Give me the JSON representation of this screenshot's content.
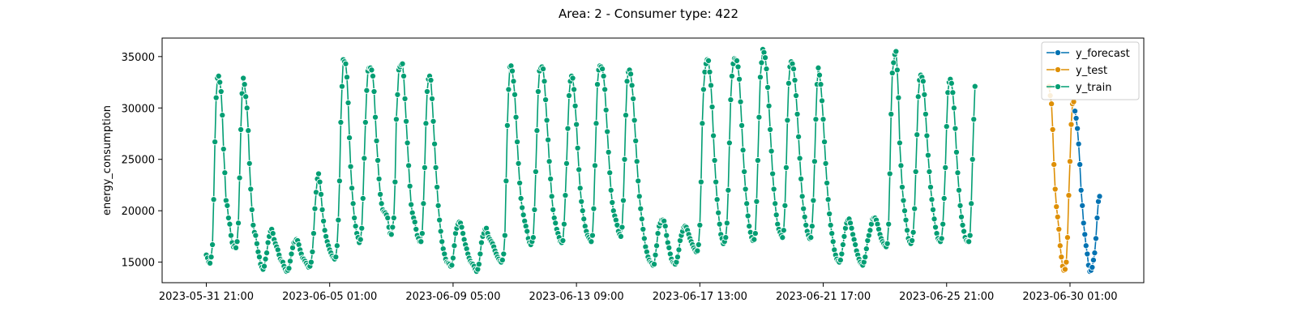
{
  "chart_data": {
    "type": "line",
    "title": "Area: 2 - Consumer type: 422",
    "xlabel": "",
    "ylabel": "energy_consumption",
    "x_unit": "hourly timestamps",
    "x_start": "2023-05-31 21:00",
    "x_ticks": [
      "2023-05-31 21:00",
      "2023-06-05 01:00",
      "2023-06-09 05:00",
      "2023-06-13 09:00",
      "2023-06-17 13:00",
      "2023-06-21 17:00",
      "2023-06-25 21:00",
      "2023-06-30 01:00"
    ],
    "y_ticks": [
      15000,
      20000,
      25000,
      30000,
      35000
    ],
    "ylim": [
      13000,
      36800
    ],
    "grid": false,
    "legend_position": "top-right",
    "markers": "circle",
    "colors": {
      "y_forecast": "#0072b2",
      "y_test": "#de8f05",
      "y_train": "#029e73"
    },
    "series": [
      {
        "name": "y_train",
        "color": "#029e73",
        "x_start": "2023-05-31 21:00",
        "step_hours": 1,
        "values": [
          15700,
          15400,
          15000,
          14900,
          15500,
          16700,
          21100,
          26700,
          31000,
          32900,
          33100,
          32500,
          31600,
          29300,
          26000,
          23700,
          21000,
          20500,
          19300,
          18700,
          17600,
          16900,
          16500,
          16600,
          16400,
          17000,
          18800,
          23200,
          27900,
          31400,
          32900,
          32300,
          31100,
          30000,
          27800,
          24600,
          22100,
          20100,
          18600,
          17900,
          17600,
          16800,
          16000,
          15500,
          14800,
          14500,
          14300,
          14600,
          15300,
          15900,
          16900,
          17500,
          18000,
          18200,
          17800,
          17200,
          16800,
          16500,
          16200,
          15700,
          15300,
          15100,
          15000,
          14600,
          14300,
          14100,
          14200,
          14400,
          15100,
          15800,
          16400,
          16900,
          17000,
          17200,
          17100,
          16700,
          16200,
          15800,
          15400,
          15300,
          15100,
          14900,
          14700,
          14500,
          14600,
          15000,
          16000,
          17800,
          20200,
          21800,
          23100,
          23600,
          22800,
          21600,
          20100,
          19000,
          18100,
          17500,
          17000,
          16600,
          16200,
          15900,
          15600,
          15400,
          15300,
          15500,
          16600,
          19100,
          22900,
          28600,
          32100,
          34700,
          34500,
          34300,
          33000,
          30500,
          27100,
          24300,
          22200,
          20700,
          19300,
          18500,
          17800,
          17400,
          16900,
          17200,
          18300,
          21200,
          25100,
          28600,
          31700,
          33600,
          33900,
          33900,
          33700,
          33100,
          31600,
          29100,
          26800,
          24900,
          23100,
          21600,
          20700,
          20100,
          19900,
          19800,
          19600,
          19300,
          18400,
          17800,
          17700,
          18400,
          19300,
          22800,
          28900,
          31300,
          33700,
          34000,
          34200,
          34300,
          33100,
          30900,
          28700,
          26600,
          24400,
          22400,
          20600,
          19800,
          19300,
          18900,
          18200,
          17600,
          17300,
          17000,
          17000,
          17800,
          20700,
          24200,
          28500,
          31600,
          32800,
          33100,
          32700,
          30900,
          28700,
          26500,
          24200,
          22300,
          20500,
          19100,
          18000,
          17000,
          16300,
          15800,
          15300,
          15000,
          14900,
          14800,
          14600,
          14700,
          15400,
          16600,
          17800,
          18300,
          18700,
          18900,
          18800,
          18400,
          17800,
          17200,
          16700,
          16300,
          15800,
          15400,
          15100,
          14900,
          14800,
          14600,
          14300,
          14100,
          14300,
          14800,
          15800,
          16900,
          17500,
          17800,
          18200,
          18300,
          17800,
          17400,
          17200,
          17000,
          16800,
          16500,
          16100,
          15800,
          15500,
          15300,
          15100,
          15000,
          15200,
          15800,
          17600,
          22900,
          28300,
          31800,
          34000,
          34100,
          33600,
          32600,
          31300,
          29100,
          26700,
          24600,
          22700,
          21200,
          20300,
          19600,
          19000,
          18500,
          18000,
          17300,
          16900,
          16700,
          17000,
          17400,
          20100,
          23800,
          27800,
          31600,
          33600,
          33900,
          34000,
          33800,
          32600,
          30800,
          28800,
          26900,
          24800,
          23100,
          21400,
          20100,
          19300,
          18800,
          18200,
          17800,
          17400,
          17000,
          16900,
          17100,
          18700,
          21500,
          24600,
          28000,
          31200,
          32600,
          33100,
          32900,
          31800,
          30200,
          28400,
          26100,
          24000,
          22200,
          20900,
          20000,
          19200,
          18500,
          18000,
          17600,
          17400,
          17200,
          17000,
          17600,
          20200,
          24400,
          28500,
          32300,
          33700,
          34100,
          34000,
          33800,
          33100,
          31800,
          29800,
          27700,
          25700,
          23700,
          22000,
          20800,
          20000,
          19500,
          19100,
          18600,
          18000,
          17700,
          17500,
          18400,
          21000,
          25000,
          29300,
          32600,
          33500,
          33700,
          33300,
          32200,
          30900,
          28800,
          26800,
          24800,
          22900,
          21400,
          20200,
          19200,
          18200,
          17300,
          16500,
          16000,
          15500,
          15200,
          15000,
          14900,
          14700,
          14800,
          15700,
          16600,
          17800,
          18500,
          18800,
          19100,
          19100,
          19000,
          18500,
          17600,
          16900,
          16400,
          15800,
          15300,
          15000,
          14900,
          14800,
          15000,
          15500,
          16200,
          17100,
          17600,
          18000,
          18400,
          18500,
          18400,
          18100,
          17700,
          17300,
          17000,
          16700,
          16400,
          16200,
          16000,
          16100,
          16700,
          18600,
          22800,
          28500,
          31800,
          33500,
          34300,
          34700,
          34600,
          33500,
          32200,
          30100,
          27300,
          24900,
          22800,
          21100,
          19800,
          18700,
          17700,
          17300,
          16800,
          17000,
          17400,
          18800,
          22000,
          26600,
          30800,
          33100,
          34300,
          34800,
          34700,
          34600,
          34000,
          32800,
          30600,
          28300,
          25900,
          23800,
          22100,
          20700,
          19500,
          18500,
          17900,
          17400,
          17100,
          17200,
          17800,
          20900,
          24900,
          29100,
          33000,
          34400,
          35700,
          35400,
          34900,
          33800,
          32000,
          30200,
          27900,
          25800,
          23600,
          22100,
          20700,
          19600,
          18700,
          18200,
          17900,
          17600,
          17400,
          18100,
          20500,
          24200,
          28800,
          32400,
          34000,
          34500,
          34300,
          33800,
          32700,
          31200,
          29400,
          27200,
          25100,
          23100,
          21400,
          20200,
          19400,
          18600,
          18000,
          17600,
          17300,
          17400,
          18500,
          21000,
          24800,
          28900,
          32300,
          33900,
          33200,
          32300,
          30700,
          28900,
          26700,
          24600,
          22700,
          21100,
          19700,
          18600,
          17800,
          17000,
          16200,
          15700,
          15300,
          15100,
          15000,
          15200,
          15800,
          16700,
          17500,
          18300,
          18800,
          19100,
          19200,
          18800,
          18300,
          17700,
          17200,
          16700,
          16100,
          15700,
          15300,
          15000,
          14800,
          14700,
          15000,
          15500,
          16300,
          17100,
          17600,
          18100,
          18700,
          19200,
          19300,
          19300,
          19100,
          18700,
          18200,
          17700,
          17300,
          17000,
          16800,
          16600,
          16500,
          16800,
          18700,
          23600,
          29400,
          33400,
          34400,
          35200,
          35500,
          33700,
          31000,
          26600,
          24400,
          22300,
          21000,
          20000,
          19100,
          18100,
          17300,
          17000,
          16800,
          17100,
          17900,
          20200,
          23800,
          27400,
          31100,
          32700,
          33200,
          33000,
          32600,
          31300,
          29400,
          27300,
          25400,
          23800,
          22300,
          21100,
          20100,
          19200,
          18400,
          17800,
          17300,
          17100,
          17000,
          17300,
          18700,
          21200,
          24200,
          28200,
          31500,
          32500,
          32800,
          32400,
          31500,
          30000,
          28000,
          25700,
          23700,
          22000,
          20500,
          19400,
          18600,
          18000,
          17400,
          17100,
          17000,
          17000,
          17600,
          20700,
          25000,
          28900,
          32100
        ]
      },
      {
        "name": "y_test",
        "color": "#de8f05",
        "x_start": "2023-06-29 08:00",
        "step_hours": 1,
        "values": [
          32100,
          31200,
          30400,
          27900,
          24500,
          22100,
          20400,
          19400,
          18200,
          16600,
          15500,
          14600,
          14200,
          14300,
          15000,
          17400,
          21500,
          24800,
          28400,
          30400,
          30600
        ]
      },
      {
        "name": "y_forecast",
        "color": "#0072b2",
        "x_start": "2023-06-30 05:00",
        "step_hours": 1,
        "values": [
          29700,
          29000,
          28000,
          26500,
          24500,
          22000,
          20500,
          18800,
          17700,
          16600,
          15800,
          14700,
          14100,
          14200,
          14500,
          15200,
          15900,
          17300,
          19300,
          20900,
          21400
        ]
      }
    ],
    "legend": [
      "y_forecast",
      "y_test",
      "y_train"
    ]
  }
}
